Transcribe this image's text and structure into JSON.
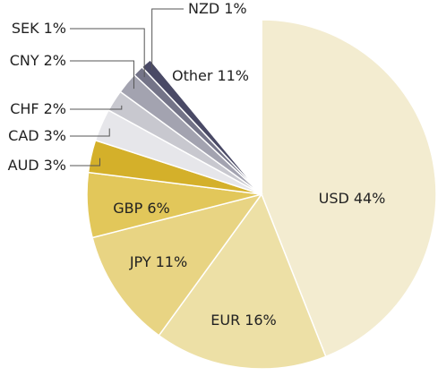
{
  "chart_data": {
    "type": "pie",
    "categories": [
      "USD",
      "EUR",
      "JPY",
      "GBP",
      "AUD",
      "CAD",
      "CHF",
      "CNY",
      "SEK",
      "NZD",
      "Other"
    ],
    "values": [
      44,
      16,
      11,
      6,
      3,
      3,
      2,
      2,
      1,
      1,
      11
    ],
    "value_labels": [
      "44%",
      "16%",
      "11%",
      "6%",
      "3%",
      "3%",
      "2%",
      "2%",
      "1%",
      "1%",
      "11%"
    ],
    "colors": [
      "#f3ecd0",
      "#ede0a6",
      "#e8d483",
      "#e2c75a",
      "#d4b02a",
      "#e6e6ea",
      "#c8c8cf",
      "#a3a3b0",
      "#747488",
      "#4a4a66",
      "#ffffff"
    ]
  }
}
